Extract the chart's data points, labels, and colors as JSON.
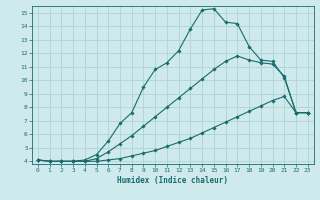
{
  "xlabel": "Humidex (Indice chaleur)",
  "bg_color": "#ceeaec",
  "grid_color": "#aed4d6",
  "line_color": "#1a6b6b",
  "xlim": [
    -0.5,
    23.5
  ],
  "ylim": [
    3.8,
    15.5
  ],
  "xticks": [
    0,
    1,
    2,
    3,
    4,
    5,
    6,
    7,
    8,
    9,
    10,
    11,
    12,
    13,
    14,
    15,
    16,
    17,
    18,
    19,
    20,
    21,
    22,
    23
  ],
  "yticks": [
    4,
    5,
    6,
    7,
    8,
    9,
    10,
    11,
    12,
    13,
    14,
    15
  ],
  "curve1_x": [
    0,
    1,
    2,
    3,
    4,
    5,
    6,
    7,
    8,
    9,
    10,
    11,
    12,
    13,
    14,
    15,
    16,
    17,
    18,
    19,
    20,
    21,
    22,
    23
  ],
  "curve1_y": [
    4.1,
    4.0,
    4.0,
    4.0,
    4.0,
    4.0,
    4.1,
    4.2,
    4.4,
    4.6,
    4.8,
    5.1,
    5.4,
    5.7,
    6.1,
    6.5,
    6.9,
    7.3,
    7.7,
    8.1,
    8.5,
    8.8,
    7.6,
    7.6
  ],
  "curve2_x": [
    0,
    1,
    2,
    3,
    4,
    5,
    6,
    7,
    8,
    9,
    10,
    11,
    12,
    13,
    14,
    15,
    16,
    17,
    18,
    19,
    20,
    21,
    22,
    23
  ],
  "curve2_y": [
    4.1,
    4.0,
    4.0,
    4.0,
    4.0,
    4.2,
    4.7,
    5.3,
    5.9,
    6.6,
    7.3,
    8.0,
    8.7,
    9.4,
    10.1,
    10.8,
    11.4,
    11.8,
    11.5,
    11.3,
    11.2,
    10.3,
    7.6,
    7.6
  ],
  "curve3_x": [
    0,
    1,
    2,
    3,
    4,
    5,
    6,
    7,
    8,
    9,
    10,
    11,
    12,
    13,
    14,
    15,
    16,
    17,
    18,
    19,
    20,
    21,
    22,
    23
  ],
  "curve3_y": [
    4.1,
    4.0,
    4.0,
    4.0,
    4.1,
    4.5,
    5.5,
    6.8,
    7.6,
    9.5,
    10.8,
    11.3,
    12.2,
    13.8,
    15.2,
    15.3,
    14.3,
    14.2,
    12.5,
    11.5,
    11.4,
    10.2,
    7.6,
    7.6
  ]
}
